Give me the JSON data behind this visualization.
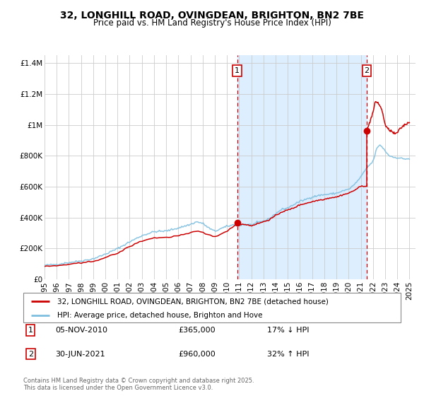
{
  "title": "32, LONGHILL ROAD, OVINGDEAN, BRIGHTON, BN2 7BE",
  "subtitle": "Price paid vs. HM Land Registry's House Price Index (HPI)",
  "background_color": "#ffffff",
  "plot_bg_color": "#ffffff",
  "grid_color": "#cccccc",
  "ylim": [
    0,
    1450000
  ],
  "xlim_start": 1995.0,
  "xlim_end": 2025.5,
  "yticks": [
    0,
    200000,
    400000,
    600000,
    800000,
    1000000,
    1200000,
    1400000
  ],
  "ytick_labels": [
    "£0",
    "£200K",
    "£400K",
    "£600K",
    "£800K",
    "£1M",
    "£1.2M",
    "£1.4M"
  ],
  "xticks": [
    1995,
    1996,
    1997,
    1998,
    1999,
    2000,
    2001,
    2002,
    2003,
    2004,
    2005,
    2006,
    2007,
    2008,
    2009,
    2010,
    2011,
    2012,
    2013,
    2014,
    2015,
    2016,
    2017,
    2018,
    2019,
    2020,
    2021,
    2022,
    2023,
    2024,
    2025
  ],
  "hpi_color": "#7fbfdf",
  "sale_color": "#cc0000",
  "marker_color": "#cc0000",
  "vline_color": "#cc0000",
  "shade_color": "#ddeeff",
  "event1_x": 2010.84,
  "event1_y": 365000,
  "event1_label": "1",
  "event1_date": "05-NOV-2010",
  "event1_price": "£365,000",
  "event1_hpi": "17% ↓ HPI",
  "event2_x": 2021.5,
  "event2_y": 960000,
  "event2_label": "2",
  "event2_date": "30-JUN-2021",
  "event2_price": "£960,000",
  "event2_hpi": "32% ↑ HPI",
  "legend1_label": "32, LONGHILL ROAD, OVINGDEAN, BRIGHTON, BN2 7BE (detached house)",
  "legend2_label": "HPI: Average price, detached house, Brighton and Hove",
  "footer": "Contains HM Land Registry data © Crown copyright and database right 2025.\nThis data is licensed under the Open Government Licence v3.0.",
  "title_fontsize": 10,
  "subtitle_fontsize": 8.5,
  "tick_fontsize": 7.5,
  "legend_fontsize": 7.5,
  "footer_fontsize": 6,
  "hpi_anchors": [
    [
      1995.0,
      90000
    ],
    [
      1996.0,
      96000
    ],
    [
      1997.0,
      108000
    ],
    [
      1998.0,
      118000
    ],
    [
      1999.0,
      132000
    ],
    [
      2000.0,
      162000
    ],
    [
      2001.0,
      198000
    ],
    [
      2002.0,
      242000
    ],
    [
      2003.0,
      282000
    ],
    [
      2004.0,
      308000
    ],
    [
      2005.0,
      312000
    ],
    [
      2006.0,
      332000
    ],
    [
      2007.0,
      355000
    ],
    [
      2007.5,
      372000
    ],
    [
      2008.0,
      362000
    ],
    [
      2008.5,
      332000
    ],
    [
      2009.0,
      310000
    ],
    [
      2009.5,
      328000
    ],
    [
      2010.0,
      342000
    ],
    [
      2010.5,
      352000
    ],
    [
      2011.0,
      348000
    ],
    [
      2011.5,
      356000
    ],
    [
      2012.0,
      352000
    ],
    [
      2012.5,
      366000
    ],
    [
      2013.0,
      376000
    ],
    [
      2013.5,
      392000
    ],
    [
      2014.0,
      425000
    ],
    [
      2014.5,
      452000
    ],
    [
      2015.0,
      462000
    ],
    [
      2015.5,
      484000
    ],
    [
      2016.0,
      504000
    ],
    [
      2016.5,
      518000
    ],
    [
      2017.0,
      533000
    ],
    [
      2017.5,
      542000
    ],
    [
      2018.0,
      548000
    ],
    [
      2018.5,
      552000
    ],
    [
      2019.0,
      557000
    ],
    [
      2019.5,
      572000
    ],
    [
      2020.0,
      582000
    ],
    [
      2020.5,
      615000
    ],
    [
      2021.0,
      662000
    ],
    [
      2021.5,
      722000
    ],
    [
      2022.0,
      762000
    ],
    [
      2022.3,
      845000
    ],
    [
      2022.6,
      872000
    ],
    [
      2022.9,
      842000
    ],
    [
      2023.3,
      802000
    ],
    [
      2023.7,
      790000
    ],
    [
      2024.0,
      788000
    ],
    [
      2024.5,
      780000
    ],
    [
      2025.0,
      780000
    ]
  ],
  "sale_anchors_pre": [
    [
      1995.0,
      82000
    ],
    [
      1996.0,
      87000
    ],
    [
      1997.0,
      96000
    ],
    [
      1998.0,
      104000
    ],
    [
      1999.0,
      116000
    ],
    [
      2000.0,
      140000
    ],
    [
      2001.0,
      168000
    ],
    [
      2002.0,
      212000
    ],
    [
      2003.0,
      248000
    ],
    [
      2004.0,
      268000
    ],
    [
      2005.0,
      270000
    ],
    [
      2006.0,
      282000
    ],
    [
      2007.0,
      298000
    ],
    [
      2007.5,
      312000
    ],
    [
      2008.0,
      302000
    ],
    [
      2008.5,
      286000
    ],
    [
      2009.0,
      278000
    ],
    [
      2009.5,
      292000
    ],
    [
      2010.0,
      308000
    ],
    [
      2010.84,
      365000
    ]
  ],
  "sale_anchors_post": [
    [
      2010.84,
      365000
    ],
    [
      2011.0,
      356000
    ],
    [
      2011.5,
      355000
    ],
    [
      2012.0,
      346000
    ],
    [
      2012.5,
      360000
    ],
    [
      2013.0,
      372000
    ],
    [
      2013.5,
      386000
    ],
    [
      2014.0,
      412000
    ],
    [
      2014.5,
      436000
    ],
    [
      2015.0,
      448000
    ],
    [
      2015.5,
      462000
    ],
    [
      2016.0,
      482000
    ],
    [
      2016.5,
      492000
    ],
    [
      2017.0,
      502000
    ],
    [
      2017.5,
      512000
    ],
    [
      2018.0,
      518000
    ],
    [
      2018.5,
      528000
    ],
    [
      2019.0,
      532000
    ],
    [
      2019.5,
      547000
    ],
    [
      2020.0,
      557000
    ],
    [
      2020.5,
      577000
    ],
    [
      2021.0,
      602000
    ],
    [
      2021.499,
      605000
    ]
  ],
  "sale_anchors_after2": [
    [
      2021.5,
      960000
    ],
    [
      2021.7,
      1010000
    ],
    [
      2022.0,
      1080000
    ],
    [
      2022.2,
      1150000
    ],
    [
      2022.4,
      1145000
    ],
    [
      2022.6,
      1120000
    ],
    [
      2022.8,
      1080000
    ],
    [
      2023.0,
      1000000
    ],
    [
      2023.2,
      975000
    ],
    [
      2023.5,
      960000
    ],
    [
      2023.8,
      940000
    ],
    [
      2024.0,
      950000
    ],
    [
      2024.3,
      980000
    ],
    [
      2024.6,
      1000000
    ],
    [
      2025.0,
      1020000
    ]
  ]
}
